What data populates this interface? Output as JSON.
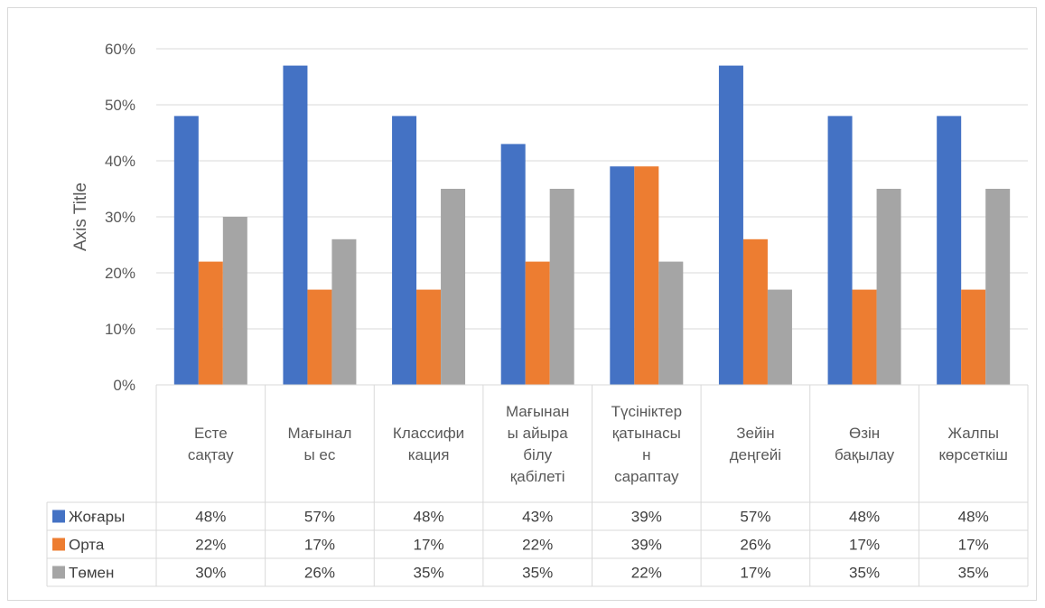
{
  "chart_data": {
    "type": "bar",
    "ylabel": "Axis Title",
    "ylim": [
      0,
      0.6
    ],
    "yticks": [
      "0%",
      "10%",
      "20%",
      "30%",
      "40%",
      "50%",
      "60%"
    ],
    "grid": true,
    "legend": "data-table",
    "categories": [
      [
        "Есте",
        "сақтау"
      ],
      [
        "Мағынал",
        "ы  ес"
      ],
      [
        "Классифи",
        "кация"
      ],
      [
        "Мағынан",
        "ы айыра",
        "білу",
        "қабілеті"
      ],
      [
        "Түсініктер",
        "қатынасы",
        "н",
        "сараптау"
      ],
      [
        "Зейін",
        "деңгейі"
      ],
      [
        "Өзін",
        "бақылау"
      ],
      [
        "Жалпы",
        "көрсеткіш"
      ]
    ],
    "series": [
      {
        "name": "Жоғары",
        "color": "#4472c4",
        "values": [
          0.48,
          0.57,
          0.48,
          0.43,
          0.39,
          0.57,
          0.48,
          0.48
        ],
        "labels": [
          "48%",
          "57%",
          "48%",
          "43%",
          "39%",
          "57%",
          "48%",
          "48%"
        ]
      },
      {
        "name": "Орта",
        "color": "#ed7d31",
        "values": [
          0.22,
          0.17,
          0.17,
          0.22,
          0.39,
          0.26,
          0.17,
          0.17
        ],
        "labels": [
          "22%",
          "17%",
          "17%",
          "22%",
          "39%",
          "26%",
          "17%",
          "17%"
        ]
      },
      {
        "name": "Төмен",
        "color": "#a5a5a5",
        "values": [
          0.3,
          0.26,
          0.35,
          0.35,
          0.22,
          0.17,
          0.35,
          0.35
        ],
        "labels": [
          "30%",
          "26%",
          "35%",
          "35%",
          "22%",
          "17%",
          "35%",
          "35%"
        ]
      }
    ]
  }
}
